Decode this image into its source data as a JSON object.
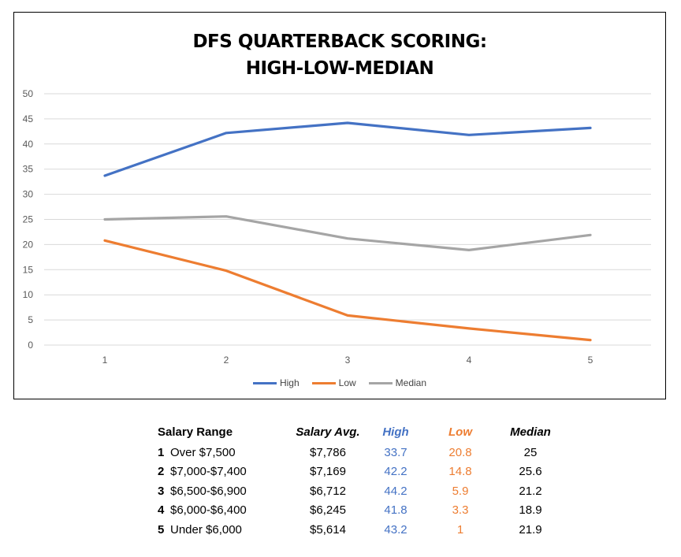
{
  "colors": {
    "high": "#4472C4",
    "low": "#ED7D31",
    "median": "#A5A5A5",
    "grid": "#D9D9D9",
    "axis_text": "#595959"
  },
  "chart_data": {
    "type": "line",
    "title_lines": [
      "DFS QUARTERBACK SCORING:",
      "HIGH-LOW-MEDIAN"
    ],
    "xlabel": "",
    "ylabel": "",
    "x": [
      1,
      2,
      3,
      4,
      5
    ],
    "ylim": [
      0,
      50
    ],
    "yticks": [
      0,
      5,
      10,
      15,
      20,
      25,
      30,
      35,
      40,
      45,
      50
    ],
    "grid": true,
    "legend_position": "bottom",
    "series": [
      {
        "name": "High",
        "color": "#4472C4",
        "values": [
          33.7,
          42.2,
          44.2,
          41.8,
          43.2
        ]
      },
      {
        "name": "Low",
        "color": "#ED7D31",
        "values": [
          20.8,
          14.8,
          5.9,
          3.3,
          1
        ]
      },
      {
        "name": "Median",
        "color": "#A5A5A5",
        "values": [
          25,
          25.6,
          21.2,
          18.9,
          21.9
        ]
      }
    ]
  },
  "table": {
    "headers": {
      "range": "Salary Range",
      "avg": "Salary Avg.",
      "high": "High",
      "low": "Low",
      "median": "Median"
    },
    "rows": [
      {
        "rank": "1",
        "range": "Over $7,500",
        "avg": "$7,786",
        "high": "33.7",
        "low": "20.8",
        "median": "25"
      },
      {
        "rank": "2",
        "range": "$7,000-$7,400",
        "avg": "$7,169",
        "high": "42.2",
        "low": "14.8",
        "median": "25.6"
      },
      {
        "rank": "3",
        "range": "$6,500-$6,900",
        "avg": "$6,712",
        "high": "44.2",
        "low": "5.9",
        "median": "21.2"
      },
      {
        "rank": "4",
        "range": "$6,000-$6,400",
        "avg": "$6,245",
        "high": "41.8",
        "low": "3.3",
        "median": "18.9"
      },
      {
        "rank": "5",
        "range": "Under $6,000",
        "avg": "$5,614",
        "high": "43.2",
        "low": "1",
        "median": "21.9"
      }
    ]
  }
}
